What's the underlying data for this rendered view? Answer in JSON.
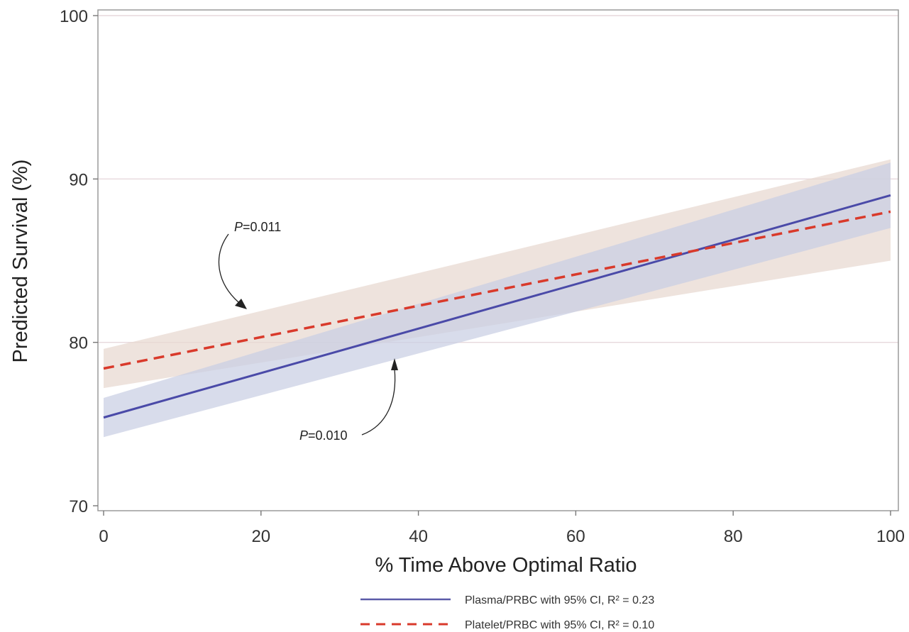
{
  "chart_data": {
    "type": "line",
    "xlabel": "% Time Above Optimal Ratio",
    "ylabel": "Predicted Survival (%)",
    "xlim": [
      0,
      100
    ],
    "ylim": [
      70,
      100
    ],
    "xticks": [
      0,
      20,
      40,
      60,
      80,
      100
    ],
    "yticks": [
      70,
      80,
      90,
      100
    ],
    "grid": "horizontal",
    "legend_position": "bottom",
    "series": [
      {
        "name": "Plasma/PRBC with 95% CI, R² = 0.23",
        "style": "solid",
        "color": "#4a4aa8",
        "band_color": "#c9cfe3",
        "x": [
          0,
          100
        ],
        "y": [
          75.4,
          89.0
        ],
        "ci_lower": [
          74.2,
          87.0
        ],
        "ci_upper": [
          76.6,
          91.0
        ]
      },
      {
        "name": "Platelet/PRBC with 95% CI, R² = 0.10",
        "style": "dashed",
        "color": "#d93a2b",
        "band_color": "#e8d8d0",
        "x": [
          0,
          100
        ],
        "y": [
          78.4,
          88.0
        ],
        "ci_lower": [
          77.2,
          85.0
        ],
        "ci_upper": [
          79.6,
          91.2
        ]
      }
    ],
    "annotations": [
      {
        "italic": "P",
        "text": "=0.011"
      },
      {
        "italic": "P",
        "text": "=0.010"
      }
    ]
  }
}
